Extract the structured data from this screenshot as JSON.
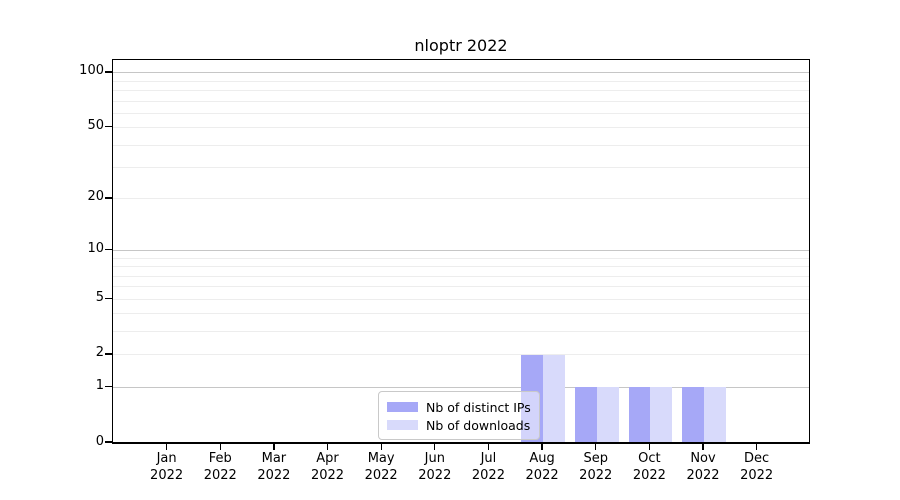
{
  "chart_data": {
    "type": "bar",
    "title": "nloptr 2022",
    "xlabel": "",
    "ylabel": "",
    "categories": [
      "Jan 2022",
      "Feb 2022",
      "Mar 2022",
      "Apr 2022",
      "May 2022",
      "Jun 2022",
      "Jul 2022",
      "Aug 2022",
      "Sep 2022",
      "Oct 2022",
      "Nov 2022",
      "Dec 2022"
    ],
    "series": [
      {
        "name": "Nb of distinct IPs",
        "color": "#a6a8f7",
        "values": [
          0,
          0,
          0,
          0,
          0,
          0,
          0,
          2,
          1,
          1,
          1,
          0
        ]
      },
      {
        "name": "Nb of downloads",
        "color": "#d8dafb",
        "values": [
          0,
          0,
          0,
          0,
          0,
          0,
          0,
          2,
          1,
          1,
          1,
          0
        ]
      }
    ],
    "yscale": "log1p",
    "ylim": [
      0,
      117.7
    ],
    "yticks": [
      0,
      1,
      2,
      5,
      10,
      20,
      50,
      100
    ],
    "grid": {
      "major_values": [
        1,
        10,
        100
      ],
      "minor_values": [
        2,
        3,
        4,
        5,
        6,
        7,
        8,
        9,
        20,
        30,
        40,
        50,
        60,
        70,
        80,
        90
      ],
      "major_color": "#c6c6c6",
      "minor_color": "#ededed"
    },
    "legend_position": "lower center, inside plot",
    "axis_color": "#000000",
    "text_color": "#000000",
    "background_color": "#ffffff"
  }
}
